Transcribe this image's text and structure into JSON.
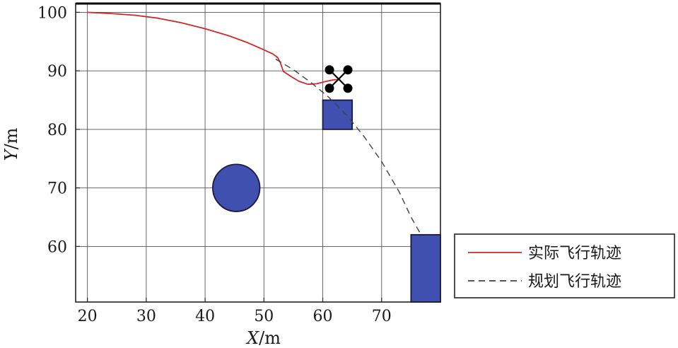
{
  "chart_data": {
    "type": "line",
    "xlabel": {
      "var": "X",
      "unit": "/m"
    },
    "ylabel": {
      "var": "Y",
      "unit": "/m"
    },
    "xlim": [
      18,
      80
    ],
    "ylim": [
      50.5,
      101.5
    ],
    "xticks": [
      20,
      30,
      40,
      50,
      60,
      70
    ],
    "yticks": [
      60,
      70,
      80,
      90,
      100
    ],
    "grid": true,
    "legend_position": "right",
    "series": [
      {
        "name": "实际飞行轨迹",
        "style": "solid",
        "color": "#d62728",
        "points": [
          [
            20,
            100
          ],
          [
            24,
            99.8
          ],
          [
            28,
            99.5
          ],
          [
            32,
            99
          ],
          [
            36,
            98.2
          ],
          [
            40,
            97.2
          ],
          [
            44,
            96
          ],
          [
            47,
            94.9
          ],
          [
            50,
            93.6
          ],
          [
            51.5,
            92.9
          ],
          [
            52.3,
            92.3
          ],
          [
            52.8,
            91.4
          ],
          [
            53.3,
            89.9
          ],
          [
            54.5,
            89.1
          ],
          [
            56,
            88.2
          ],
          [
            57.5,
            87.7
          ],
          [
            59,
            87.8
          ],
          [
            60.5,
            88.2
          ],
          [
            62,
            88.5
          ],
          [
            63,
            88.5
          ]
        ]
      },
      {
        "name": "规划飞行轨迹",
        "style": "dashed",
        "color": "#404040",
        "points": [
          [
            52,
            92
          ],
          [
            55,
            90.2
          ],
          [
            58,
            88
          ],
          [
            61,
            85.5
          ],
          [
            64,
            82.5
          ],
          [
            67,
            78.8
          ],
          [
            70,
            74.5
          ],
          [
            73,
            69.3
          ],
          [
            75,
            65
          ],
          [
            76.7,
            62
          ]
        ]
      }
    ],
    "obstacles": [
      {
        "shape": "rect",
        "x": [
          60,
          65
        ],
        "y": [
          80,
          85
        ],
        "color": "#4050b0"
      },
      {
        "shape": "rect",
        "x": [
          75,
          80
        ],
        "y": [
          50.5,
          62
        ],
        "color": "#4050b0"
      },
      {
        "shape": "circle",
        "cx": 45.3,
        "cy": 70,
        "r": 4,
        "color": "#4050b0"
      }
    ],
    "drone_marker": {
      "x": 62.7,
      "y": 88.6
    }
  }
}
